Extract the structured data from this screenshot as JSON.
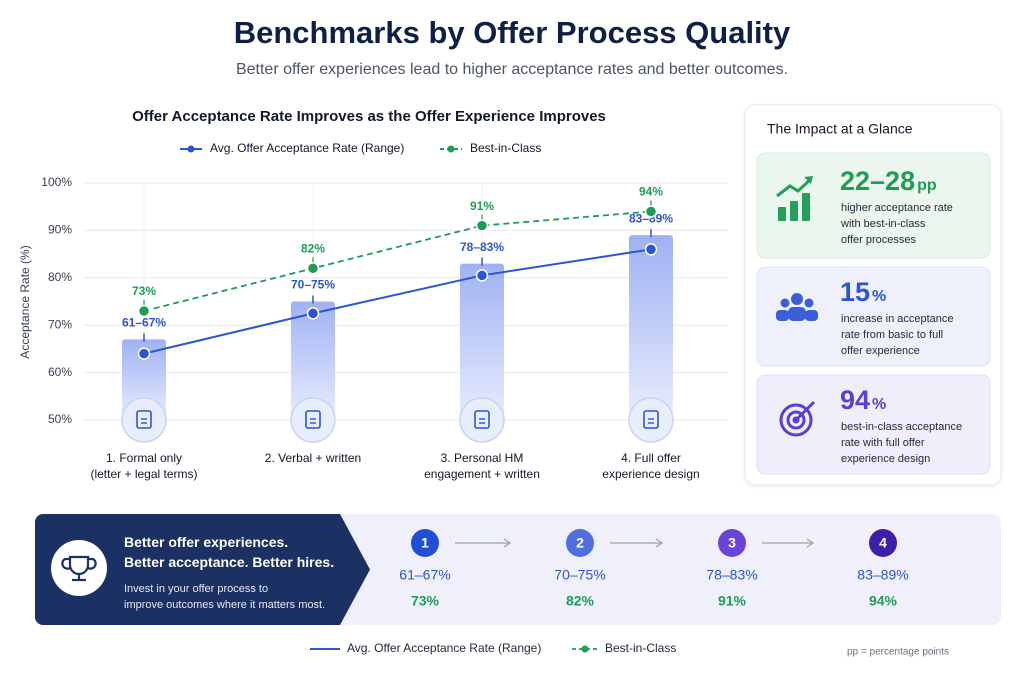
{
  "header": {
    "title": "Benchmarks by Offer Process Quality",
    "subtitle": "Better offer experiences lead to higher acceptance rates and better outcomes."
  },
  "chart_data": {
    "type": "line",
    "title": "Offer Acceptance Rate Improves as the Offer Experience Improves",
    "y_label": "Acceptance Rate (%)",
    "categories": [
      "1. Formal only\n(letter + legal terms)",
      "2. Verbal + written",
      "3. Personal HM\nengagement + written",
      "4. Full offer\nexperience design"
    ],
    "series": [
      {
        "name": "Avg. Offer Acceptance Rate (Range)",
        "color": "#2b55d4",
        "low": [
          61,
          70,
          78,
          83
        ],
        "high": [
          67,
          75,
          83,
          89
        ],
        "value_labels": [
          "61–67%",
          "70–75%",
          "78–83%",
          "83–89%"
        ]
      },
      {
        "name": "Best-in-Class",
        "color": "#1f9d55",
        "values": [
          73,
          82,
          91,
          94
        ],
        "value_labels": [
          "73%",
          "82%",
          "91%",
          "94%"
        ]
      }
    ],
    "ylim": [
      50,
      100
    ],
    "yticks": [
      {
        "value": 50,
        "label": "50%"
      },
      {
        "value": 60,
        "label": "60%"
      },
      {
        "value": 70,
        "label": "70%"
      },
      {
        "value": 80,
        "label": "80%"
      },
      {
        "value": 90,
        "label": "90%"
      },
      {
        "value": 100,
        "label": "100%"
      }
    ],
    "grid": true
  },
  "impact": {
    "title": "The Impact at a Glance",
    "cards": [
      {
        "value": "22–28",
        "unit": "pp",
        "text": "higher acceptance rate\nwith best-in-class\noffer processes"
      },
      {
        "value": "15",
        "unit": "%",
        "text": "increase in acceptance\nrate from basic to full\noffer experience"
      },
      {
        "value": "94",
        "unit": "%",
        "text": "best-in-class acceptance\nrate with full offer\nexperience design"
      }
    ]
  },
  "banner": {
    "headline": "Better offer experiences.\nBetter acceptance. Better hires.",
    "body": "Invest in your offer process to\nimprove outcomes where it matters most.",
    "steps": [
      "1",
      "2",
      "3",
      "4"
    ]
  },
  "footnote": "pp = percentage points"
}
